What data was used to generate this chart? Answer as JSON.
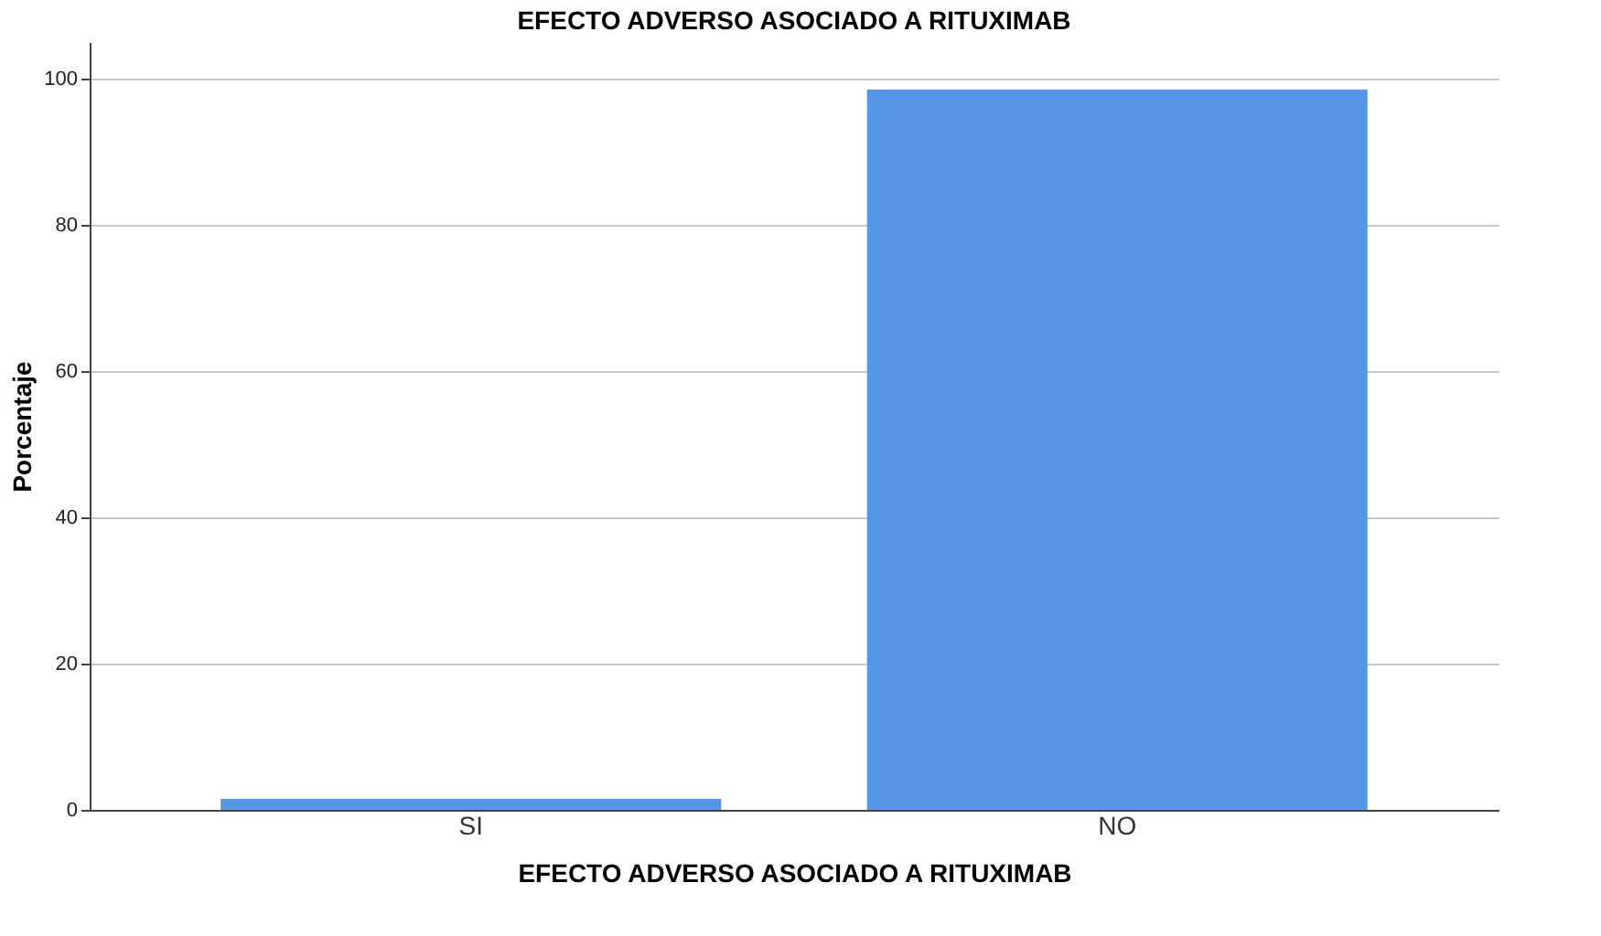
{
  "chart_data": {
    "type": "bar",
    "title": "EFECTO ADVERSO ASOCIADO A RITUXIMAB",
    "xlabel": "EFECTO ADVERSO ASOCIADO A RITUXIMAB",
    "ylabel": "Porcentaje",
    "categories": [
      "SI",
      "NO"
    ],
    "values": [
      1.5,
      98.5
    ],
    "color": "#5596e6",
    "ylim": [
      0,
      105
    ],
    "yticks": [
      0,
      20,
      40,
      60,
      80,
      100
    ],
    "grid": "y"
  }
}
